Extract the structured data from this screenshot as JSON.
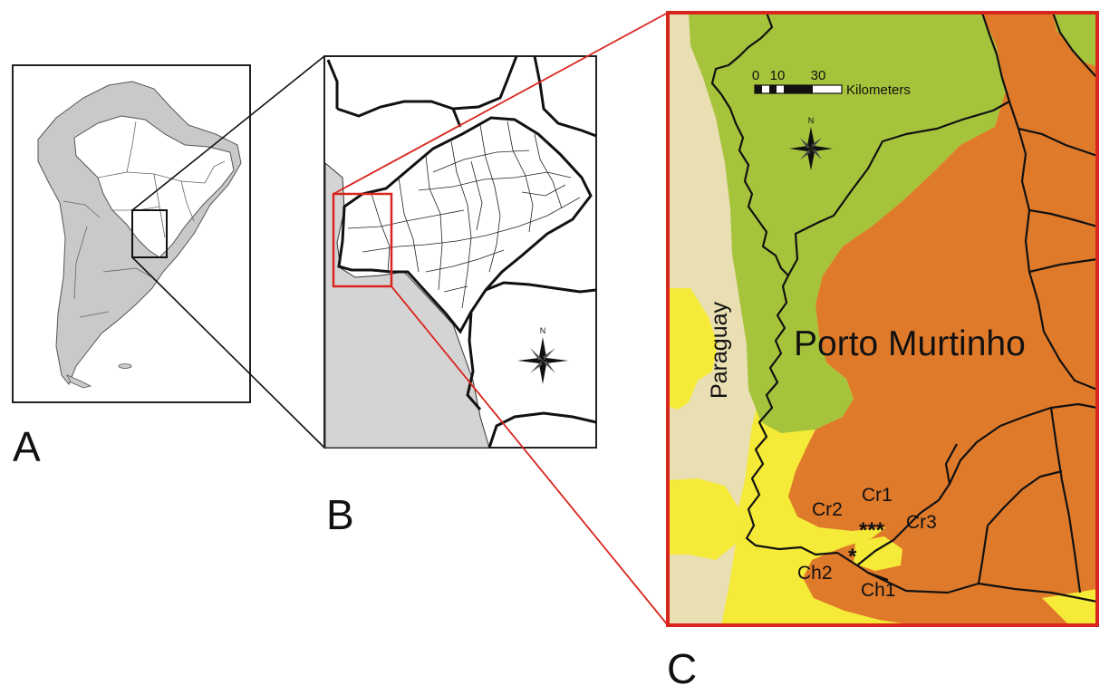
{
  "panels": {
    "a": {
      "label": "A"
    },
    "b": {
      "label": "B",
      "north": "N"
    },
    "c": {
      "label": "C",
      "north": "N",
      "scale": {
        "ticks": [
          "0",
          "10",
          "30"
        ],
        "unit": "Kilometers"
      },
      "places": {
        "country": "Paraguay",
        "city": "Porto Murtinho"
      },
      "sites": {
        "cr1": "Cr1",
        "cr2": "Cr2",
        "cr3": "Cr3",
        "ch1": "Ch1",
        "ch2": "Ch2",
        "cr_markers": "***",
        "ch_marker": "*"
      }
    }
  },
  "colors": {
    "frame_red": "#d8261f",
    "vegetation_green": "#a6c33c",
    "vegetation_orange": "#e07a2b",
    "vegetation_yellow": "#f4ea37",
    "paraguay_beige": "#e9dfb3",
    "land_gray": "#cfcfcf",
    "ocean_white": "#ffffff"
  }
}
